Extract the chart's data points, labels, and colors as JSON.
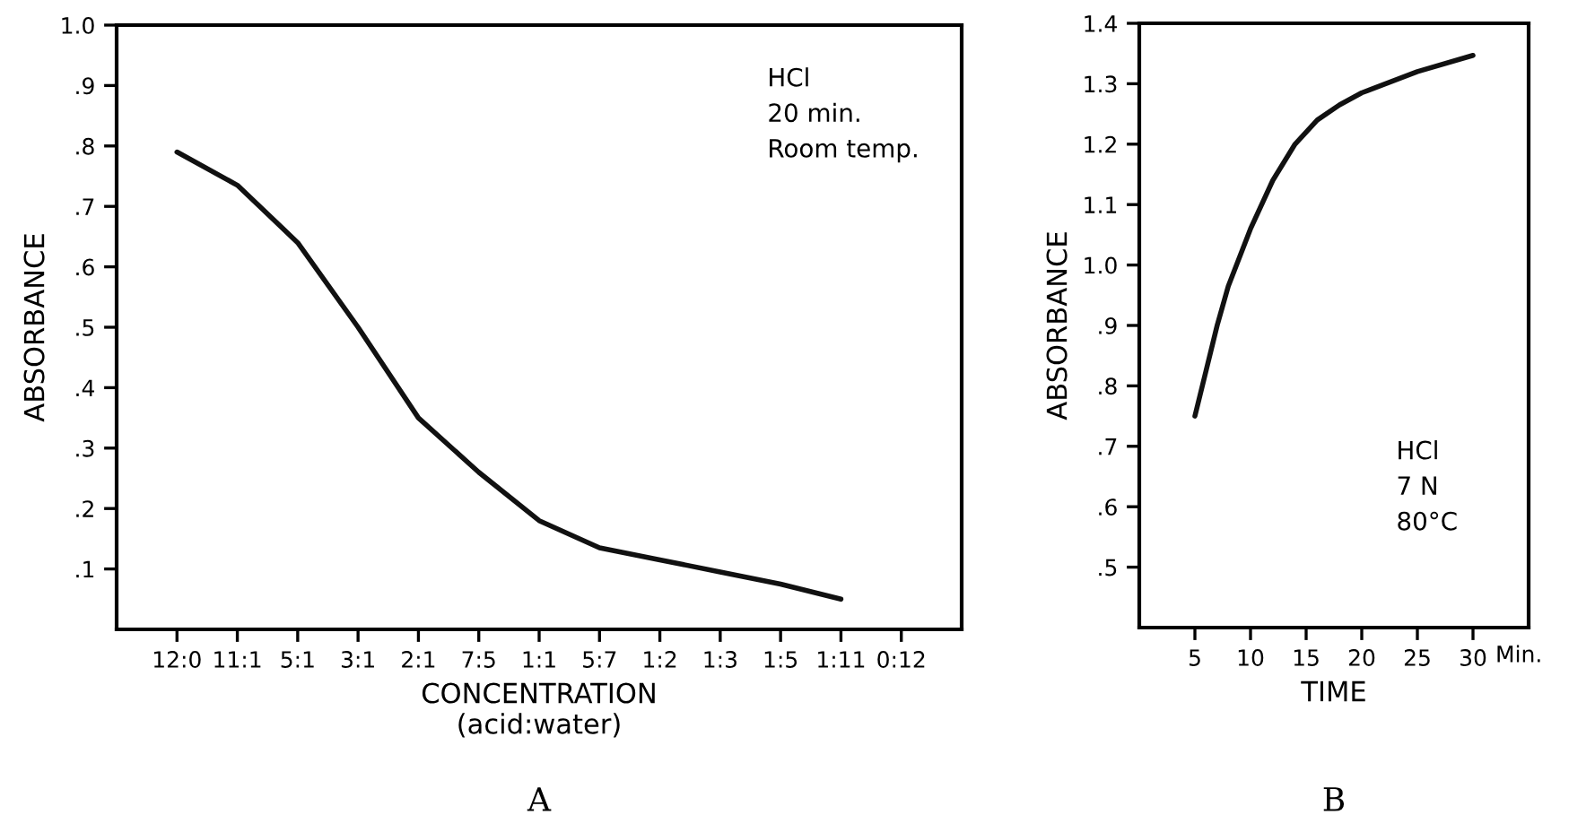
{
  "chart_data": [
    {
      "type": "line",
      "xlabel": "CONCENTRATION\n(acid:water)",
      "ylabel": "ABSORBANCE",
      "categories": [
        "12:0",
        "11:1",
        "5:1",
        "3:1",
        "2:1",
        "7:5",
        "1:1",
        "5:7",
        "1:2",
        "1:3",
        "1:5",
        "1:11",
        "0:12"
      ],
      "series": [
        {
          "color": "#111111",
          "values": [
            0.79,
            0.735,
            0.64,
            0.5,
            0.35,
            0.26,
            0.18,
            0.135,
            0.115,
            0.095,
            0.075,
            0.05,
            null
          ]
        }
      ],
      "ylim": [
        0,
        1.0
      ],
      "yticks": [
        {
          "value": 0.1,
          "label": ".1"
        },
        {
          "value": 0.2,
          "label": ".2"
        },
        {
          "value": 0.3,
          "label": ".3"
        },
        {
          "value": 0.4,
          "label": ".4"
        },
        {
          "value": 0.5,
          "label": ".5"
        },
        {
          "value": 0.6,
          "label": ".6"
        },
        {
          "value": 0.7,
          "label": ".7"
        },
        {
          "value": 0.8,
          "label": ".8"
        },
        {
          "value": 0.9,
          "label": ".9"
        },
        {
          "value": 1.0,
          "label": "1.0"
        }
      ],
      "annotations": [
        "HCl\n20 min.\nRoom temp.",
        "A"
      ],
      "grid": false,
      "legend": false,
      "marker": "none",
      "line_style": "solid"
    },
    {
      "type": "line",
      "xlabel": "TIME",
      "ylabel": "ABSORBANCE",
      "series": [
        {
          "color": "#111111",
          "x": [
            5,
            6,
            7,
            8,
            10,
            12,
            14,
            16,
            18,
            20,
            25,
            30
          ],
          "values": [
            0.75,
            0.825,
            0.9,
            0.965,
            1.06,
            1.14,
            1.2,
            1.24,
            1.265,
            1.285,
            1.32,
            1.347
          ]
        }
      ],
      "xlim": [
        0,
        35
      ],
      "xticks": [
        5,
        10,
        15,
        20,
        25,
        30
      ],
      "ylim": [
        0.4,
        1.4
      ],
      "yticks": [
        {
          "value": 0.5,
          "label": ".5"
        },
        {
          "value": 0.6,
          "label": ".6"
        },
        {
          "value": 0.7,
          "label": ".7"
        },
        {
          "value": 0.8,
          "label": ".8"
        },
        {
          "value": 0.9,
          "label": ".9"
        },
        {
          "value": 1.0,
          "label": "1.0"
        },
        1.1,
        1.2,
        1.3,
        1.4
      ],
      "annotations": [
        "HCl\n7 N\n80°C",
        "Min.",
        "B"
      ],
      "grid": false,
      "legend": false,
      "marker": "none",
      "line_style": "solid"
    }
  ]
}
